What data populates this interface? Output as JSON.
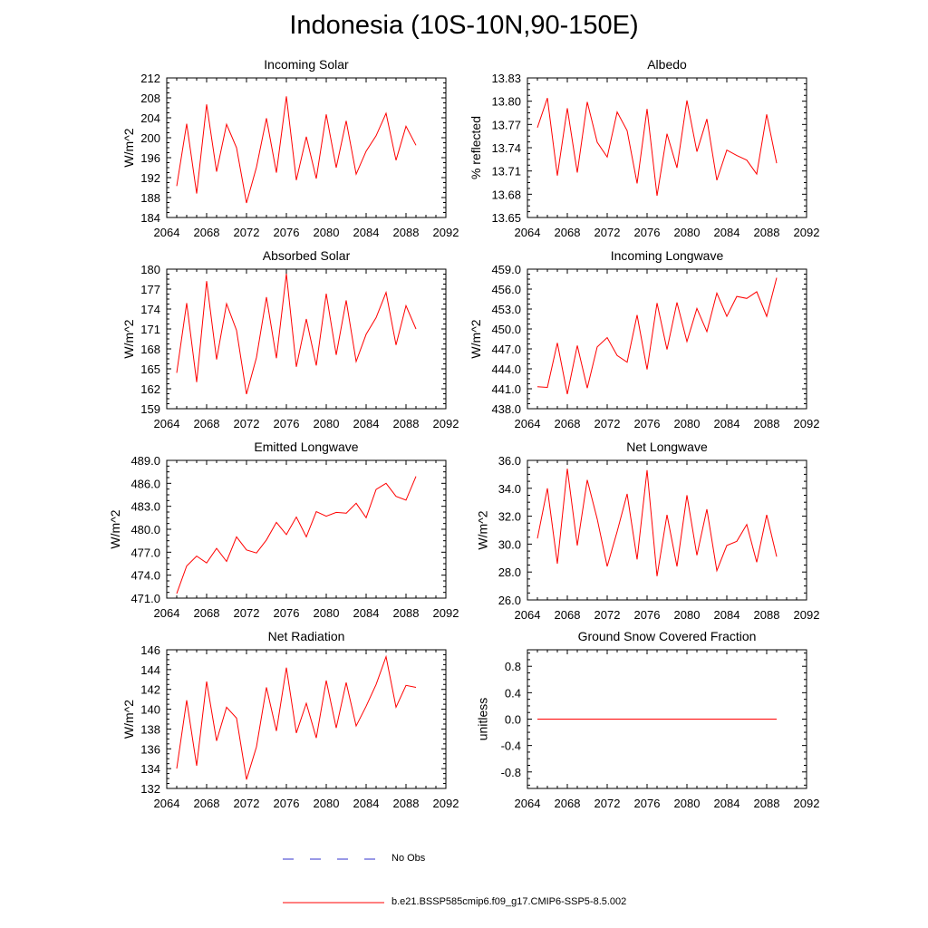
{
  "page": {
    "title": "Indonesia (10S-10N,90-150E)"
  },
  "legend": {
    "items": [
      {
        "label": "No Obs",
        "color": "#3333cc",
        "dashed": true
      },
      {
        "label": "b.e21.BSSP585cmip6.f09_g17.CMIP6-SSP5-8.5.002",
        "color": "#ff0000",
        "dashed": false
      }
    ]
  },
  "chart_data": [
    {
      "type": "line",
      "title": "Incoming Solar",
      "ylabel": "W/m^2",
      "xlim": [
        2064,
        2092
      ],
      "ylim": [
        184,
        212
      ],
      "xticks": [
        2064,
        2068,
        2072,
        2076,
        2080,
        2084,
        2088,
        2092
      ],
      "yticks": [
        "184",
        "188",
        "192",
        "196",
        "200",
        "204",
        "208",
        "212"
      ],
      "x": [
        2065,
        2066,
        2067,
        2068,
        2069,
        2070,
        2071,
        2072,
        2073,
        2074,
        2075,
        2076,
        2077,
        2078,
        2079,
        2080,
        2081,
        2082,
        2083,
        2084,
        2085,
        2086,
        2087,
        2088,
        2089
      ],
      "series": [
        {
          "name": "b.e21.BSSP585cmip6.f09_g17.CMIP6-SSP5-8.5.002",
          "color": "#ff0000",
          "values": [
            190.3,
            202.8,
            188.8,
            206.7,
            193.2,
            202.7,
            198.0,
            186.9,
            194.1,
            203.9,
            193.0,
            208.3,
            191.5,
            200.2,
            191.8,
            204.7,
            194.0,
            203.4,
            192.7,
            197.3,
            200.4,
            204.9,
            195.5,
            202.3,
            198.5
          ]
        }
      ]
    },
    {
      "type": "line",
      "title": "Albedo",
      "ylabel": "% reflected",
      "xlim": [
        2064,
        2092
      ],
      "ylim": [
        13.65,
        13.83
      ],
      "xticks": [
        2064,
        2068,
        2072,
        2076,
        2080,
        2084,
        2088,
        2092
      ],
      "yticks": [
        "13.65",
        "13.68",
        "13.71",
        "13.74",
        "13.77",
        "13.80",
        "13.83"
      ],
      "x": [
        2065,
        2066,
        2067,
        2068,
        2069,
        2070,
        2071,
        2072,
        2073,
        2074,
        2075,
        2076,
        2077,
        2078,
        2079,
        2080,
        2081,
        2082,
        2083,
        2084,
        2085,
        2086,
        2087,
        2088,
        2089
      ],
      "series": [
        {
          "name": "b.e21.BSSP585cmip6.f09_g17.CMIP6-SSP5-8.5.002",
          "color": "#ff0000",
          "values": [
            13.766,
            13.804,
            13.704,
            13.791,
            13.708,
            13.799,
            13.747,
            13.728,
            13.786,
            13.762,
            13.694,
            13.79,
            13.678,
            13.758,
            13.714,
            13.801,
            13.735,
            13.777,
            13.698,
            13.737,
            13.73,
            13.724,
            13.706,
            13.783,
            13.72
          ]
        }
      ]
    },
    {
      "type": "line",
      "title": "Absorbed Solar",
      "ylabel": "W/m^2",
      "xlim": [
        2064,
        2092
      ],
      "ylim": [
        159,
        180
      ],
      "xticks": [
        2064,
        2068,
        2072,
        2076,
        2080,
        2084,
        2088,
        2092
      ],
      "yticks": [
        "159",
        "162",
        "165",
        "168",
        "171",
        "174",
        "177",
        "180"
      ],
      "x": [
        2065,
        2066,
        2067,
        2068,
        2069,
        2070,
        2071,
        2072,
        2073,
        2074,
        2075,
        2076,
        2077,
        2078,
        2079,
        2080,
        2081,
        2082,
        2083,
        2084,
        2085,
        2086,
        2087,
        2088,
        2089
      ],
      "series": [
        {
          "name": "b.e21.BSSP585cmip6.f09_g17.CMIP6-SSP5-8.5.002",
          "color": "#ff0000",
          "values": [
            164.4,
            174.9,
            163.0,
            178.2,
            166.4,
            174.8,
            170.8,
            161.2,
            166.7,
            175.8,
            166.6,
            179.3,
            165.3,
            172.5,
            165.5,
            176.3,
            167.1,
            175.3,
            166.1,
            170.2,
            172.7,
            176.5,
            168.6,
            174.5,
            171.0
          ]
        }
      ]
    },
    {
      "type": "line",
      "title": "Incoming Longwave",
      "ylabel": "W/m^2",
      "xlim": [
        2064,
        2092
      ],
      "ylim": [
        438,
        459
      ],
      "xticks": [
        2064,
        2068,
        2072,
        2076,
        2080,
        2084,
        2088,
        2092
      ],
      "yticks": [
        "438.0",
        "441.0",
        "444.0",
        "447.0",
        "450.0",
        "453.0",
        "456.0",
        "459.0"
      ],
      "x": [
        2065,
        2066,
        2067,
        2068,
        2069,
        2070,
        2071,
        2072,
        2073,
        2074,
        2075,
        2076,
        2077,
        2078,
        2079,
        2080,
        2081,
        2082,
        2083,
        2084,
        2085,
        2086,
        2087,
        2088,
        2089
      ],
      "series": [
        {
          "name": "b.e21.BSSP585cmip6.f09_g17.CMIP6-SSP5-8.5.002",
          "color": "#ff0000",
          "values": [
            441.3,
            441.2,
            447.9,
            440.2,
            447.5,
            441.1,
            447.3,
            448.7,
            446.0,
            445.0,
            452.1,
            443.9,
            453.9,
            446.9,
            454.0,
            448.1,
            453.1,
            449.6,
            455.4,
            451.9,
            454.9,
            454.6,
            455.6,
            451.9,
            457.7
          ]
        }
      ]
    },
    {
      "type": "line",
      "title": "Emitted Longwave",
      "ylabel": "W/m^2",
      "xlim": [
        2064,
        2092
      ],
      "ylim": [
        471,
        489
      ],
      "xticks": [
        2064,
        2068,
        2072,
        2076,
        2080,
        2084,
        2088,
        2092
      ],
      "yticks": [
        "471.0",
        "474.0",
        "477.0",
        "480.0",
        "483.0",
        "486.0",
        "489.0"
      ],
      "x": [
        2065,
        2066,
        2067,
        2068,
        2069,
        2070,
        2071,
        2072,
        2073,
        2074,
        2075,
        2076,
        2077,
        2078,
        2079,
        2080,
        2081,
        2082,
        2083,
        2084,
        2085,
        2086,
        2087,
        2088,
        2089
      ],
      "series": [
        {
          "name": "b.e21.BSSP585cmip6.f09_g17.CMIP6-SSP5-8.5.002",
          "color": "#ff0000",
          "values": [
            471.6,
            475.2,
            476.5,
            475.6,
            477.5,
            475.8,
            479.0,
            477.3,
            476.9,
            478.6,
            480.9,
            479.3,
            481.6,
            479.0,
            482.3,
            481.7,
            482.2,
            482.1,
            483.4,
            481.5,
            485.2,
            486.0,
            484.3,
            483.8,
            486.9
          ]
        }
      ]
    },
    {
      "type": "line",
      "title": "Net Longwave",
      "ylabel": "W/m^2",
      "xlim": [
        2064,
        2092
      ],
      "ylim": [
        26,
        36
      ],
      "xticks": [
        2064,
        2068,
        2072,
        2076,
        2080,
        2084,
        2088,
        2092
      ],
      "yticks": [
        "26.0",
        "28.0",
        "30.0",
        "32.0",
        "34.0",
        "36.0"
      ],
      "x": [
        2065,
        2066,
        2067,
        2068,
        2069,
        2070,
        2071,
        2072,
        2073,
        2074,
        2075,
        2076,
        2077,
        2078,
        2079,
        2080,
        2081,
        2082,
        2083,
        2084,
        2085,
        2086,
        2087,
        2088,
        2089
      ],
      "series": [
        {
          "name": "b.e21.BSSP585cmip6.f09_g17.CMIP6-SSP5-8.5.002",
          "color": "#ff0000",
          "values": [
            30.4,
            34.0,
            28.6,
            35.4,
            29.9,
            34.6,
            31.8,
            28.4,
            30.9,
            33.6,
            28.9,
            35.3,
            27.7,
            32.1,
            28.4,
            33.5,
            29.2,
            32.5,
            28.1,
            29.9,
            30.2,
            31.4,
            28.7,
            32.1,
            29.1
          ]
        }
      ]
    },
    {
      "type": "line",
      "title": "Net Radiation",
      "ylabel": "W/m^2",
      "xlim": [
        2064,
        2092
      ],
      "ylim": [
        132,
        146
      ],
      "xticks": [
        2064,
        2068,
        2072,
        2076,
        2080,
        2084,
        2088,
        2092
      ],
      "yticks": [
        "132",
        "134",
        "136",
        "138",
        "140",
        "142",
        "144",
        "146"
      ],
      "x": [
        2065,
        2066,
        2067,
        2068,
        2069,
        2070,
        2071,
        2072,
        2073,
        2074,
        2075,
        2076,
        2077,
        2078,
        2079,
        2080,
        2081,
        2082,
        2083,
        2084,
        2085,
        2086,
        2087,
        2088,
        2089
      ],
      "series": [
        {
          "name": "b.e21.BSSP585cmip6.f09_g17.CMIP6-SSP5-8.5.002",
          "color": "#ff0000",
          "values": [
            134.0,
            140.9,
            134.3,
            142.8,
            136.8,
            140.2,
            139.1,
            132.9,
            136.2,
            142.2,
            137.8,
            144.2,
            137.6,
            140.6,
            137.1,
            142.9,
            138.1,
            142.7,
            138.3,
            140.3,
            142.5,
            145.3,
            140.2,
            142.4,
            142.2
          ]
        }
      ]
    },
    {
      "type": "line",
      "title": "Ground Snow Covered Fraction",
      "ylabel": "unitless",
      "xlim": [
        2064,
        2092
      ],
      "ylim": [
        -1.05,
        1.05
      ],
      "xticks": [
        2064,
        2068,
        2072,
        2076,
        2080,
        2084,
        2088,
        2092
      ],
      "yticks": [
        "-0.8",
        "-0.4",
        "0.0",
        "0.4",
        "0.8"
      ],
      "x": [
        2065,
        2089
      ],
      "series": [
        {
          "name": "b.e21.BSSP585cmip6.f09_g17.CMIP6-SSP5-8.5.002",
          "color": "#ff0000",
          "values": [
            0.0,
            0.0
          ]
        }
      ]
    }
  ]
}
